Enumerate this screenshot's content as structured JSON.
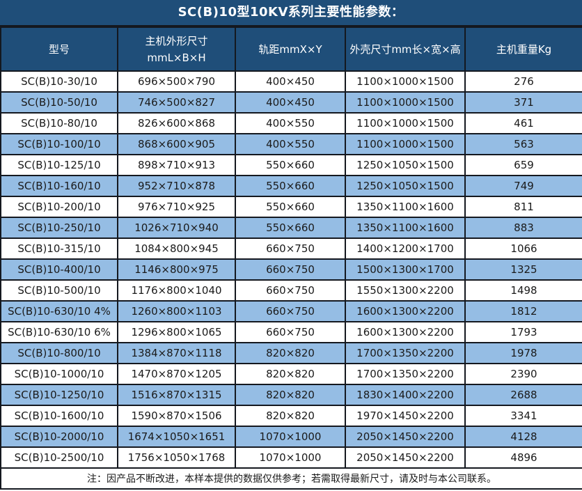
{
  "title": "SC(B)10型10KV系列主要性能参数：",
  "footer_note": "注：因产品不断改进，本样本提供的数据仅供参考；若需取得最新尺寸，请及时与本公司联系。",
  "colors": {
    "header_bg": "#1F4E79",
    "row_bg": "#FFFFFF",
    "alt_row_bg": "#95BDE4",
    "grid_border": "#14181F",
    "header_text": "#FFFFFF",
    "cell_text": "#1A1A1A"
  },
  "header_cells": [
    {
      "label": "型号"
    },
    {
      "label": "主机外形尺寸",
      "label2": "mmL×B×H"
    },
    {
      "label": "轨距mmX×Y"
    },
    {
      "label": "外壳尺寸mm长×宽×高"
    },
    {
      "label": "主机重量Kg"
    }
  ],
  "chart_data": {
    "type": "table",
    "title": "SC(B)10型10KV系列主要性能参数",
    "columns": [
      "型号",
      "主机外形尺寸 mmL×B×H",
      "轨距mmX×Y",
      "外壳尺寸mm长×宽×高",
      "主机重量Kg"
    ],
    "rows": [
      [
        "SC(B)10-30/10",
        "696×500×790",
        "400×450",
        "1100×1000×1500",
        "276"
      ],
      [
        "SC(B)10-50/10",
        "746×500×827",
        "400×450",
        "1100×1000×1500",
        "371"
      ],
      [
        "SC(B)10-80/10",
        "826×600×868",
        "400×550",
        "1100×1000×1500",
        "461"
      ],
      [
        "SC(B)10-100/10",
        "868×600×905",
        "400×550",
        "1100×1000×1500",
        "563"
      ],
      [
        "SC(B)10-125/10",
        "898×710×913",
        "550×660",
        "1250×1050×1500",
        "659"
      ],
      [
        "SC(B)10-160/10",
        "952×710×878",
        "550×660",
        "1250×1050×1500",
        "749"
      ],
      [
        "SC(B)10-200/10",
        "976×710×925",
        "550×660",
        "1350×1100×1600",
        "811"
      ],
      [
        "SC(B)10-250/10",
        "1026×710×940",
        "550×660",
        "1350×1100×1600",
        "883"
      ],
      [
        "SC(B)10-315/10",
        "1084×800×945",
        "660×750",
        "1400×1200×1700",
        "1066"
      ],
      [
        "SC(B)10-400/10",
        "1146×800×975",
        "660×750",
        "1500×1300×1700",
        "1325"
      ],
      [
        "SC(B)10-500/10",
        "1176×800×1040",
        "660×750",
        "1550×1300×2200",
        "1498"
      ],
      [
        "SC(B)10-630/10 4%",
        "1260×800×1103",
        "660×750",
        "1600×1300×2200",
        "1812"
      ],
      [
        "SC(B)10-630/10 6%",
        "1296×800×1065",
        "660×750",
        "1600×1300×2200",
        "1793"
      ],
      [
        "SC(B)10-800/10",
        "1384×870×1118",
        "820×820",
        "1700×1350×2200",
        "1978"
      ],
      [
        "SC(B)10-1000/10",
        "1470×870×1205",
        "820×820",
        "1700×1350×2200",
        "2390"
      ],
      [
        "SC(B)10-1250/10",
        "1516×870×1315",
        "820×820",
        "1830×1400×2200",
        "2688"
      ],
      [
        "SC(B)10-1600/10",
        "1590×870×1506",
        "820×820",
        "1970×1450×2200",
        "3341"
      ],
      [
        "SC(B)10-2000/10",
        "1674×1050×1651",
        "1070×1000",
        "2050×1450×2200",
        "4128"
      ],
      [
        "SC(B)10-2500/10",
        "1756×1050×1768",
        "1070×1000",
        "2050×1450×2200",
        "4896"
      ]
    ]
  }
}
